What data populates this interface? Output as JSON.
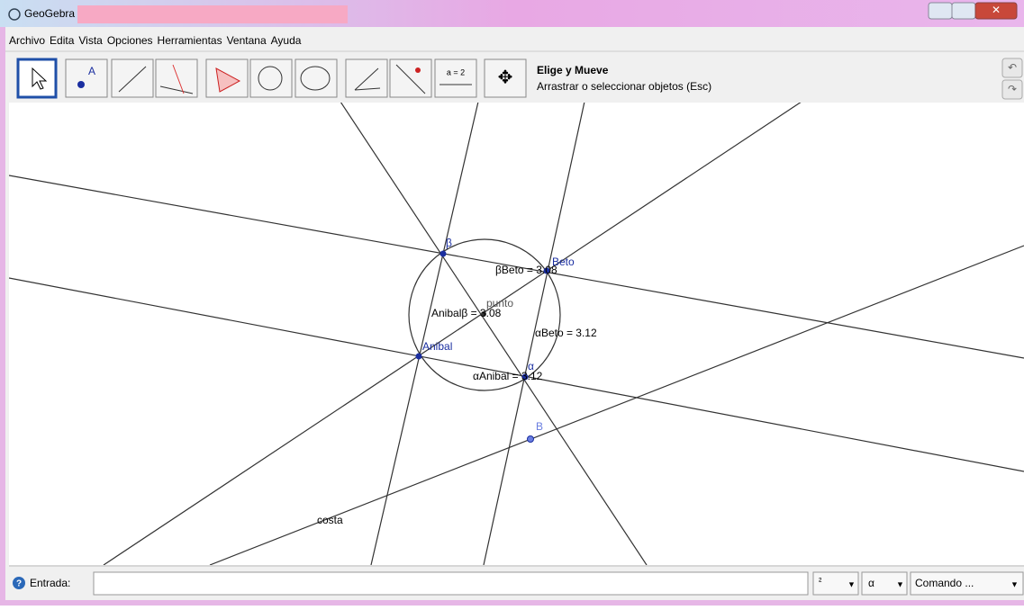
{
  "window": {
    "title": "GeoGebra -"
  },
  "menu": [
    "Archivo",
    "Edita",
    "Vista",
    "Opciones",
    "Herramientas",
    "Ventana",
    "Ayuda"
  ],
  "toolbar": {
    "tool_icon_label": "a = 2",
    "help_title": "Elige y Mueve",
    "help_text": "Arrastrar o seleccionar objetos (Esc)"
  },
  "canvas": {
    "labels": [
      "β",
      "Beto",
      "βBeto = 3.08",
      "punto",
      "Anibalβ = 3.08",
      "αBeto = 3.12",
      "Anibal",
      "α",
      "αAnibal = 3.12",
      "B",
      "costa"
    ]
  },
  "input_bar": {
    "label": "Entrada:",
    "symbol_menu": "²",
    "greek_menu": "α",
    "command_menu": "Comando ..."
  }
}
